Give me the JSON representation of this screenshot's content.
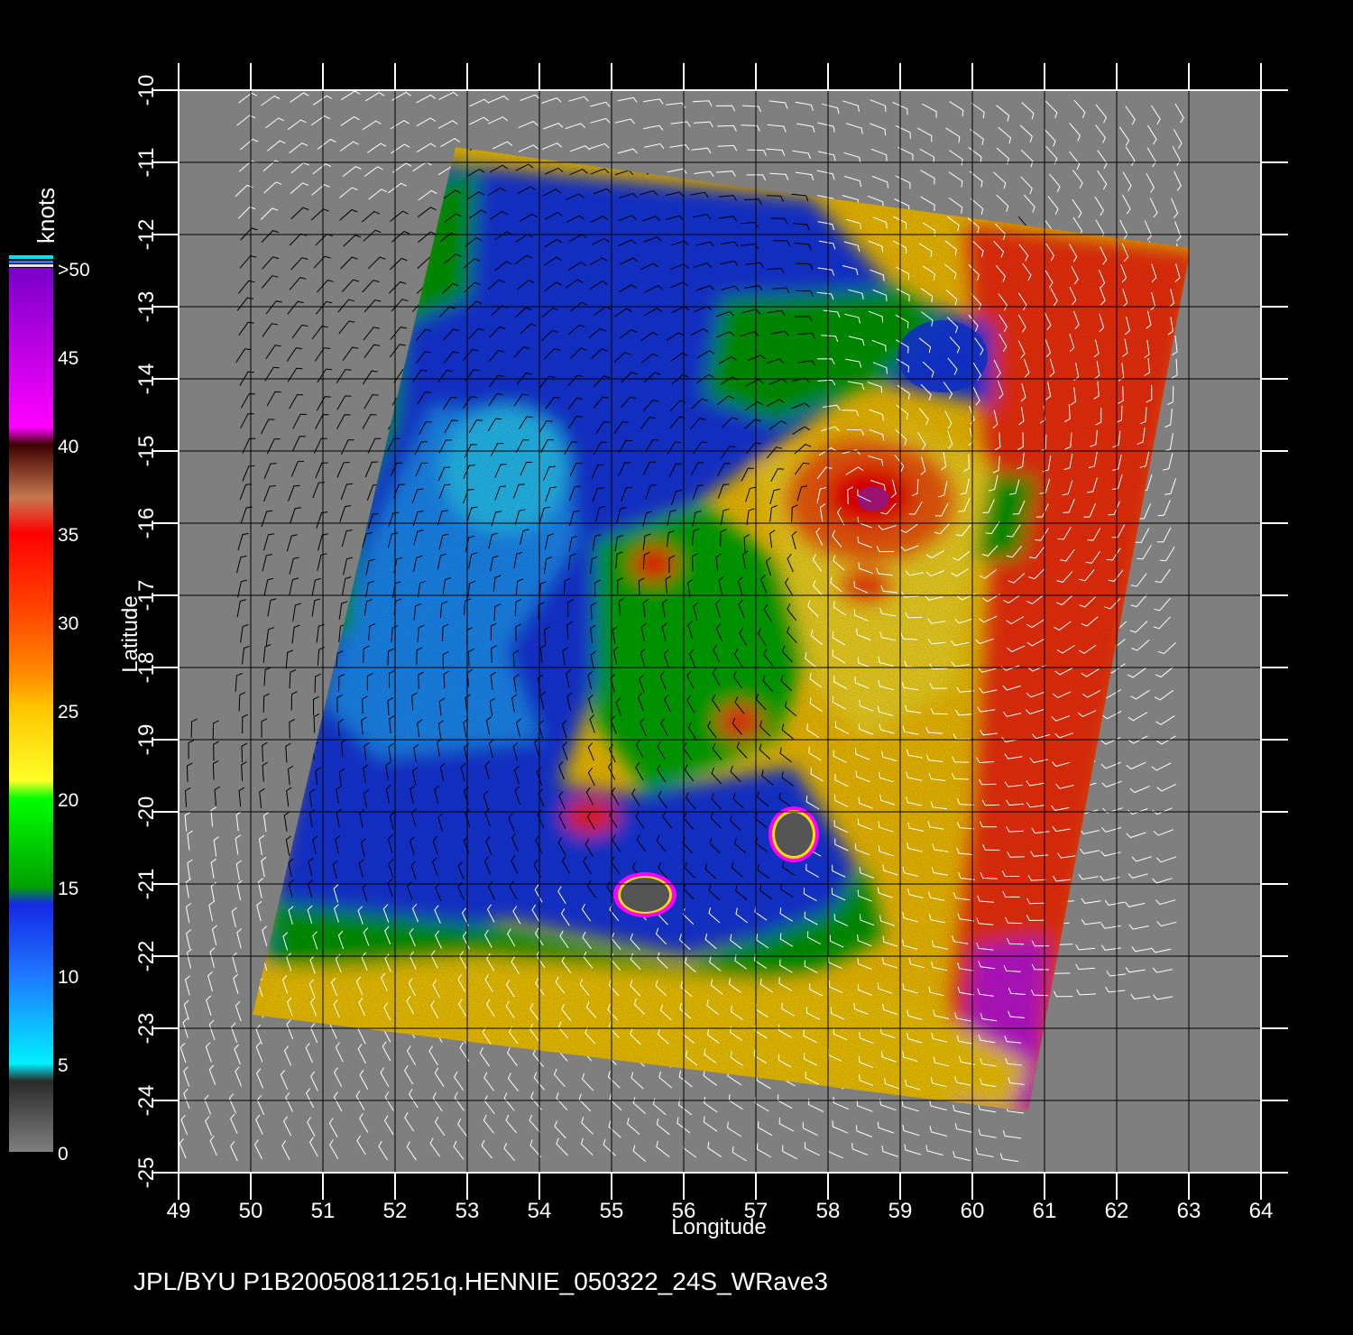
{
  "colorbar": {
    "unit": "knots",
    "ticks": [
      "0",
      "5",
      "10",
      "15",
      "20",
      "25",
      "30",
      "35",
      "40",
      "45",
      ">50"
    ],
    "tick_values": [
      0,
      5,
      10,
      15,
      20,
      25,
      30,
      35,
      40,
      45,
      50
    ],
    "stops": [
      {
        "v": 0,
        "color": "#7f7f7f"
      },
      {
        "v": 4,
        "color": "#2a2a2a"
      },
      {
        "v": 5,
        "color": "#00f0ff"
      },
      {
        "v": 10,
        "color": "#1e78ff"
      },
      {
        "v": 14,
        "color": "#1428e6"
      },
      {
        "v": 15,
        "color": "#00a000"
      },
      {
        "v": 20,
        "color": "#00ff00"
      },
      {
        "v": 21,
        "color": "#ffff28"
      },
      {
        "v": 25,
        "color": "#ffc800"
      },
      {
        "v": 27,
        "color": "#ff8c00"
      },
      {
        "v": 30,
        "color": "#ff5000"
      },
      {
        "v": 35,
        "color": "#ff0000"
      },
      {
        "v": 37,
        "color": "#c87850"
      },
      {
        "v": 40,
        "color": "#3c0000"
      },
      {
        "v": 41,
        "color": "#ff00ff"
      },
      {
        "v": 50,
        "color": "#7800c8"
      }
    ]
  },
  "map": {
    "xlabel": "Longitude",
    "ylabel": "Latitude",
    "lon_ticks": [
      49,
      50,
      51,
      52,
      53,
      54,
      55,
      56,
      57,
      58,
      59,
      60,
      61,
      62,
      63,
      64
    ],
    "lat_ticks": [
      -10,
      -11,
      -12,
      -13,
      -14,
      -15,
      -16,
      -17,
      -18,
      -19,
      -20,
      -21,
      -22,
      -23,
      -24,
      -25
    ],
    "lon_range": [
      49,
      64
    ],
    "lat_range": [
      -25,
      -10
    ],
    "background_color": "#7f7f7f",
    "storm_center": {
      "lon": 58.6,
      "lat": -15.6
    },
    "islands": [
      {
        "name": "",
        "lon": 55.5,
        "lat": -21.1
      },
      {
        "name": "",
        "lon": 57.6,
        "lat": -20.3
      }
    ]
  },
  "footer": {
    "caption": "JPL/BYU  P1B20050811251q.HENNIE_050322_24S_WRave3"
  }
}
